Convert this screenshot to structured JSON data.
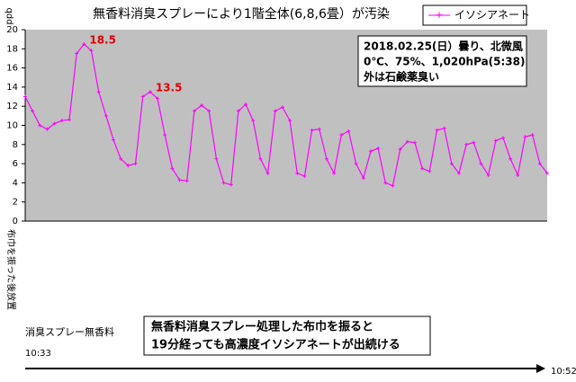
{
  "chart_data": {
    "type": "line",
    "title": "無香料消臭スプレーにより1階全体(6,8,6畳）が汚染",
    "y_axis_label": "ppb",
    "ylim": [
      0,
      20
    ],
    "yticks": [
      0,
      2,
      4,
      6,
      8,
      10,
      12,
      14,
      16,
      18,
      20
    ],
    "legend": "top-right",
    "series": [
      {
        "name": "イソシアネート",
        "color": "#ff00ff",
        "values": [
          13.0,
          11.5,
          10.0,
          9.6,
          10.2,
          10.5,
          10.6,
          17.5,
          18.5,
          17.8,
          13.5,
          11.0,
          8.5,
          6.5,
          5.8,
          6.0,
          13.0,
          13.5,
          12.8,
          9.0,
          5.5,
          4.3,
          4.2,
          11.5,
          12.1,
          11.5,
          6.5,
          4.0,
          3.8,
          11.5,
          12.2,
          10.5,
          6.5,
          5.0,
          11.5,
          11.9,
          10.5,
          5.0,
          4.7,
          9.5,
          9.6,
          6.5,
          5.0,
          9.0,
          9.4,
          6.0,
          4.5,
          7.3,
          7.6,
          4.0,
          3.7,
          7.5,
          8.3,
          8.2,
          5.5,
          5.2,
          9.5,
          9.7,
          6.0,
          5.0,
          8.0,
          8.2,
          6.0,
          4.8,
          8.4,
          8.7,
          6.5,
          4.8,
          8.8,
          9.0,
          6.0,
          5.0
        ]
      }
    ],
    "peak_labels": [
      {
        "text": "18.5",
        "index": 8
      },
      {
        "text": "13.5",
        "index": 17
      }
    ],
    "conditions": [
      "2018.02.25(日）曇り、北微風",
      "0℃、75%、1,020hPa(5:38)",
      "外は石鹸薬臭い"
    ],
    "event_label": "布巾を振った後放置",
    "spray_label": "消臭スプレー無香料",
    "start_time": "10:33",
    "end_time": "10:52",
    "note": [
      "無香料消臭スプレー処理した布巾を振ると",
      "19分経っても高濃度イソシアネートが出続ける"
    ]
  }
}
